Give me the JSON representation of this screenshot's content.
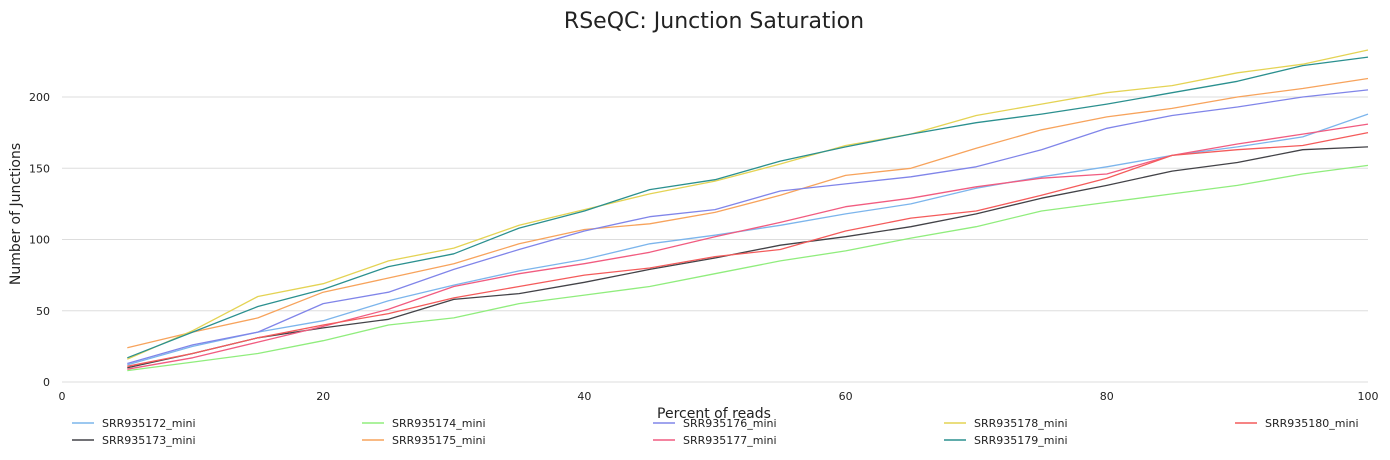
{
  "chart_data": {
    "type": "line",
    "title": "RSeQC: Junction Saturation",
    "xlabel": "Percent of reads",
    "ylabel": "Number of Junctions",
    "xlim": [
      0,
      100
    ],
    "ylim": [
      0,
      240
    ],
    "xticks": [
      0,
      20,
      40,
      60,
      80,
      100
    ],
    "yticks": [
      0,
      50,
      100,
      150,
      200
    ],
    "grid": true,
    "legend_position": "bottom",
    "x": [
      5,
      10,
      15,
      20,
      25,
      30,
      35,
      40,
      45,
      50,
      55,
      60,
      65,
      70,
      75,
      80,
      85,
      90,
      95,
      100
    ],
    "series": [
      {
        "name": "SRR935172_mini",
        "color": "#7cb5ec",
        "values": [
          12,
          25,
          35,
          43,
          57,
          68,
          78,
          86,
          97,
          103,
          110,
          118,
          125,
          136,
          144,
          151,
          159,
          165,
          172,
          188
        ]
      },
      {
        "name": "SRR935173_mini",
        "color": "#434348",
        "values": [
          10,
          20,
          31,
          38,
          44,
          58,
          62,
          70,
          79,
          87,
          96,
          102,
          109,
          118,
          129,
          138,
          148,
          154,
          163,
          165
        ]
      },
      {
        "name": "SRR935174_mini",
        "color": "#90ed7d",
        "values": [
          8,
          14,
          20,
          29,
          40,
          45,
          55,
          61,
          67,
          76,
          85,
          92,
          101,
          109,
          120,
          126,
          132,
          138,
          146,
          152
        ]
      },
      {
        "name": "SRR935175_mini",
        "color": "#f7a35c",
        "values": [
          24,
          35,
          45,
          63,
          73,
          83,
          97,
          107,
          111,
          119,
          131,
          145,
          150,
          164,
          177,
          186,
          192,
          200,
          206,
          213
        ]
      },
      {
        "name": "SRR935176_mini",
        "color": "#8085e9",
        "values": [
          13,
          26,
          35,
          55,
          63,
          79,
          93,
          106,
          116,
          121,
          134,
          139,
          144,
          151,
          163,
          178,
          187,
          193,
          200,
          205
        ]
      },
      {
        "name": "SRR935177_mini",
        "color": "#f15c80",
        "values": [
          9,
          17,
          28,
          39,
          51,
          67,
          76,
          83,
          91,
          102,
          112,
          123,
          129,
          137,
          143,
          146,
          159,
          167,
          174,
          181
        ]
      },
      {
        "name": "SRR935178_mini",
        "color": "#e4d354",
        "values": [
          16,
          36,
          60,
          69,
          85,
          94,
          110,
          121,
          132,
          141,
          153,
          166,
          174,
          187,
          195,
          203,
          208,
          217,
          223,
          233
        ]
      },
      {
        "name": "SRR935179_mini",
        "color": "#2b908f",
        "values": [
          17,
          35,
          53,
          65,
          81,
          90,
          108,
          120,
          135,
          142,
          155,
          165,
          174,
          182,
          188,
          195,
          203,
          211,
          222,
          228
        ]
      },
      {
        "name": "SRR935180_mini",
        "color": "#f45b5b",
        "values": [
          11,
          20,
          31,
          40,
          48,
          59,
          67,
          75,
          80,
          88,
          93,
          106,
          115,
          120,
          131,
          143,
          159,
          163,
          166,
          175
        ]
      }
    ]
  }
}
